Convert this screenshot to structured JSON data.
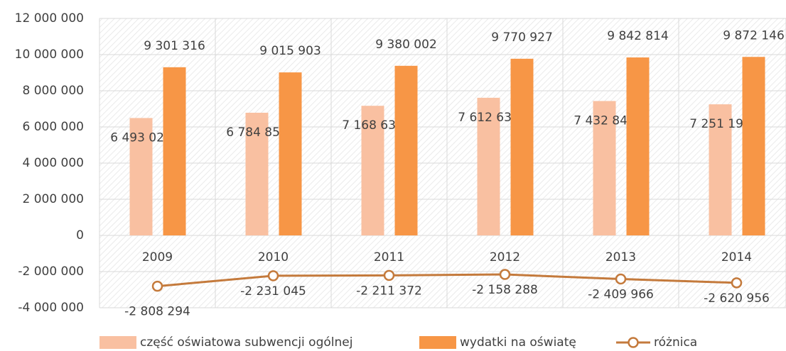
{
  "chart_data": {
    "type": "bar",
    "categories": [
      "2009",
      "2010",
      "2011",
      "2012",
      "2013",
      "2014"
    ],
    "series": [
      {
        "name": "część oświatowa subwencji ogólnej",
        "type": "bar",
        "color": "#f9c0a1",
        "values": [
          6493022,
          6784858,
          7168630,
          7612639,
          7432848,
          7251190
        ],
        "value_labels": [
          "6 493 022",
          "6 784 858",
          "7 168 630",
          "7 612 639",
          "7 432 848",
          "7 251 190"
        ]
      },
      {
        "name": "wydatki na oświatę",
        "type": "bar",
        "color": "#f79646",
        "values": [
          9301316,
          9015903,
          9380002,
          9770927,
          9842814,
          9872146
        ],
        "value_labels": [
          "9 301 316",
          "9 015 903",
          "9 380 002",
          "9 770 927",
          "9 842 814",
          "9 872 146"
        ]
      },
      {
        "name": "różnica",
        "type": "line",
        "color": "#c47a3c",
        "values": [
          -2808294,
          -2231045,
          -2211372,
          -2158288,
          -2409966,
          -2620956
        ],
        "value_labels": [
          "-2 808 294",
          "-2 231 045",
          "-2 211 372",
          "-2 158 288",
          "-2 409 966",
          "-2 620 956"
        ]
      }
    ],
    "ylim": [
      -4000000,
      12000000
    ],
    "yticks": [
      {
        "value": -4000000,
        "label": "-4 000 000"
      },
      {
        "value": -2000000,
        "label": "-2 000 000"
      },
      0,
      {
        "value": 2000000,
        "label": "2 000 000"
      },
      {
        "value": 4000000,
        "label": "4 000 000"
      },
      {
        "value": 6000000,
        "label": "6 000 000"
      },
      {
        "value": 8000000,
        "label": "8 000 000"
      },
      {
        "value": 10000000,
        "label": "10 000 000"
      },
      {
        "value": 12000000,
        "label": "12 000 000"
      }
    ],
    "grid": true
  }
}
